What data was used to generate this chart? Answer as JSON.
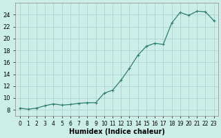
{
  "x": [
    0,
    1,
    2,
    3,
    4,
    5,
    6,
    7,
    8,
    9,
    10,
    11,
    12,
    13,
    14,
    15,
    16,
    17,
    18,
    19,
    20,
    21,
    22,
    23
  ],
  "y": [
    8.3,
    8.1,
    8.3,
    8.7,
    9.0,
    8.8,
    8.9,
    9.1,
    9.2,
    9.2,
    10.8,
    11.3,
    13.0,
    15.0,
    17.2,
    18.7,
    19.2,
    19.0,
    22.6,
    24.4,
    23.9,
    24.6,
    24.5,
    23.0
  ],
  "line_color": "#2e7d6e",
  "marker_color": "#2e7d6e",
  "bg_color": "#cceee8",
  "grid_color": "#aacccc",
  "xlabel": "Humidex (Indice chaleur)",
  "xlim": [
    -0.5,
    23.5
  ],
  "ylim": [
    7,
    26
  ],
  "yticks": [
    8,
    10,
    12,
    14,
    16,
    18,
    20,
    22,
    24
  ],
  "xticks": [
    0,
    1,
    2,
    3,
    4,
    5,
    6,
    7,
    8,
    9,
    10,
    11,
    12,
    13,
    14,
    15,
    16,
    17,
    18,
    19,
    20,
    21,
    22,
    23
  ],
  "title_fontsize": 7,
  "label_fontsize": 7,
  "tick_fontsize": 6
}
